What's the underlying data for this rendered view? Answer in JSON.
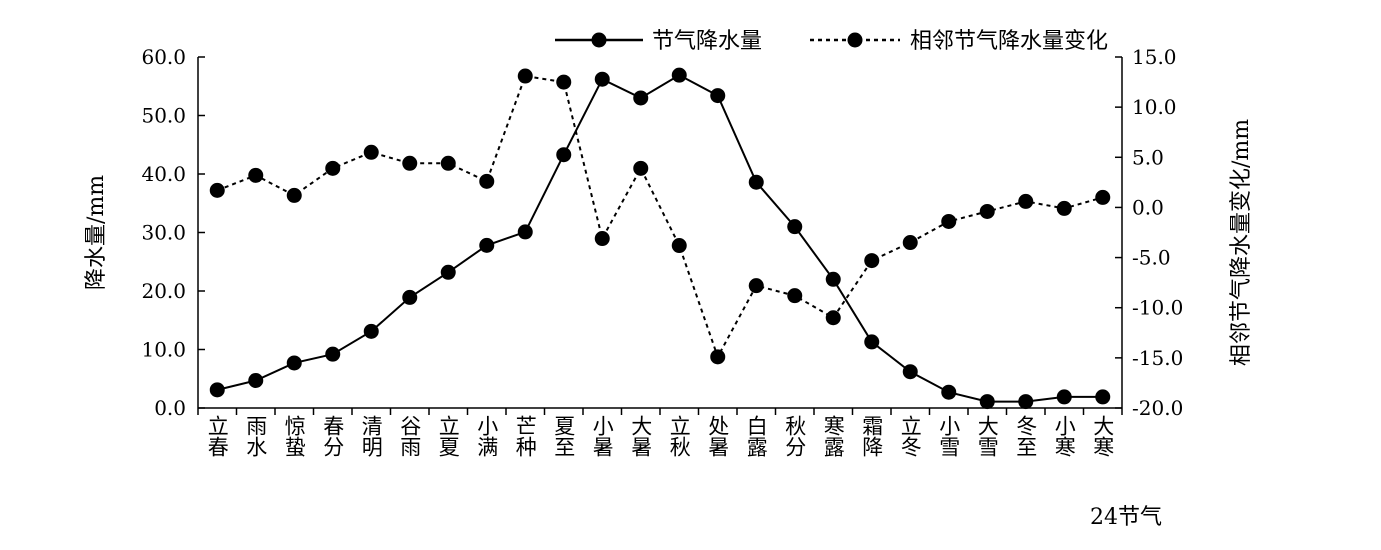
{
  "chart_data": {
    "type": "line",
    "xlabel": "24节气",
    "categories": [
      "立春",
      "雨水",
      "惊蛰",
      "春分",
      "清明",
      "谷雨",
      "立夏",
      "小满",
      "芒种",
      "夏至",
      "小暑",
      "大暑",
      "立秋",
      "处暑",
      "白露",
      "秋分",
      "寒露",
      "霜降",
      "立冬",
      "小雪",
      "大雪",
      "冬至",
      "小寒",
      "大寒"
    ],
    "y_left": {
      "label": "降水量/mm",
      "range": [
        0,
        60
      ],
      "step": 10,
      "tick_labels": [
        "0.0",
        "10.0",
        "20.0",
        "30.0",
        "40.0",
        "50.0",
        "60.0"
      ]
    },
    "y_right": {
      "label": "相邻节气降水量变化/mm",
      "range": [
        -20,
        15
      ],
      "step": 5,
      "tick_labels": [
        "-20.0",
        "-15.0",
        "-10.0",
        "-5.0",
        "0.0",
        "5.0",
        "10.0",
        "15.0"
      ]
    },
    "legend": {
      "position": "top"
    },
    "grid": false,
    "series": [
      {
        "name": "节气降水量",
        "axis": "left",
        "style": "solid",
        "color": "#000000",
        "values": [
          3.1,
          4.7,
          7.7,
          9.2,
          13.1,
          18.9,
          23.2,
          27.8,
          30.1,
          43.3,
          56.2,
          53.0,
          56.9,
          53.4,
          38.6,
          31.0,
          22.0,
          11.3,
          6.2,
          2.7,
          1.1,
          1.1,
          1.9,
          1.9
        ]
      },
      {
        "name": "相邻节气降水量变化",
        "axis": "right",
        "style": "dotted",
        "color": "#000000",
        "values": [
          1.7,
          3.2,
          1.2,
          3.9,
          5.5,
          4.4,
          4.4,
          2.6,
          13.1,
          12.5,
          -3.1,
          3.9,
          -3.8,
          -14.9,
          -7.8,
          -8.8,
          -11.0,
          -5.3,
          -3.5,
          -1.4,
          -0.4,
          0.6,
          -0.1,
          1.0
        ]
      }
    ]
  }
}
